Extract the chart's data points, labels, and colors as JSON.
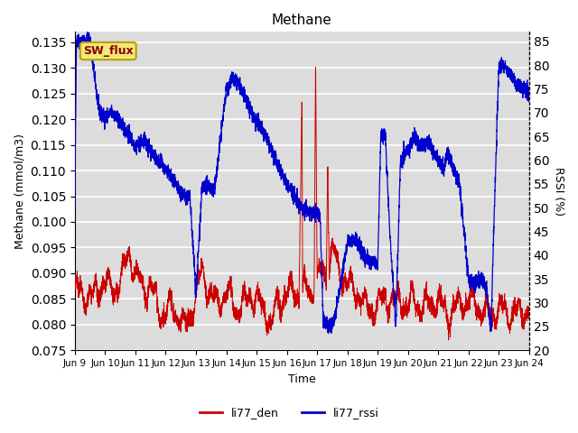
{
  "title": "Methane",
  "ylabel_left": "Methane (mmol/m3)",
  "ylabel_right": "RSSI (%)",
  "xlabel": "Time",
  "ylim_left": [
    0.075,
    0.137
  ],
  "ylim_right": [
    20,
    87
  ],
  "background_color": "#dcdcdc",
  "figure_background": "#ffffff",
  "grid_color": "#ffffff",
  "annotation_text": "SW_flux",
  "annotation_bg": "#f0e878",
  "annotation_edge": "#b8a000",
  "annotation_text_color": "#8b0000",
  "legend_labels": [
    "li77_den",
    "li77_rssi"
  ],
  "line_color_red": "#cc0000",
  "line_color_blue": "#0000cc",
  "xtick_labels": [
    "Jun 9",
    "Jun 10",
    "Jun 11",
    "Jun 12",
    "Jun 13",
    "Jun 14",
    "Jun 15",
    "Jun 16",
    "Jun 17",
    "Jun 18",
    "Jun 19",
    "Jun 20",
    "Jun 21",
    "Jun 22",
    "Jun 23",
    "Jun 24"
  ],
  "yticks_left": [
    0.075,
    0.08,
    0.085,
    0.09,
    0.095,
    0.1,
    0.105,
    0.11,
    0.115,
    0.12,
    0.125,
    0.13,
    0.135
  ],
  "yticks_right": [
    20,
    25,
    30,
    35,
    40,
    45,
    50,
    55,
    60,
    65,
    70,
    75,
    80,
    85
  ]
}
